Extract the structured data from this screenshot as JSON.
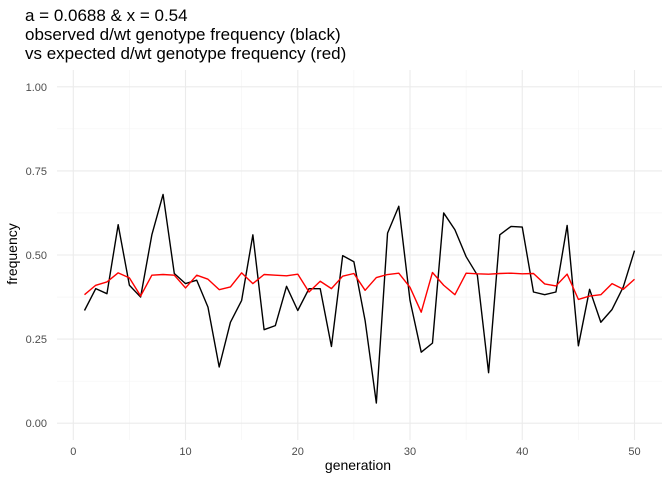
{
  "chart_data": {
    "type": "line",
    "title_lines": [
      "a = 0.0688 & x = 0.54",
      "observed d/wt genotype frequency (black)",
      "vs expected d/wt genotype frequency (red)"
    ],
    "xlabel": "generation",
    "ylabel": "frequency",
    "xlim": [
      -1.45,
      52.45
    ],
    "ylim": [
      -0.05,
      1.05
    ],
    "x_ticks": [
      0,
      10,
      20,
      30,
      40,
      50
    ],
    "x_tick_labels": [
      "0",
      "10",
      "20",
      "30",
      "40",
      "50"
    ],
    "y_ticks": [
      0,
      0.25,
      0.5,
      0.75,
      1.0
    ],
    "y_tick_labels": [
      "0.00",
      "0.25",
      "0.50",
      "0.75",
      "1.00"
    ],
    "grid": true,
    "x": [
      1,
      2,
      3,
      4,
      5,
      6,
      7,
      8,
      9,
      10,
      11,
      12,
      13,
      14,
      15,
      16,
      17,
      18,
      19,
      20,
      21,
      22,
      23,
      24,
      25,
      26,
      27,
      28,
      29,
      30,
      31,
      32,
      33,
      34,
      35,
      36,
      37,
      38,
      39,
      40,
      41,
      42,
      43,
      44,
      45,
      46,
      47,
      48,
      49,
      50
    ],
    "series": [
      {
        "color": "#000000",
        "values": [
          0.335,
          0.4,
          0.385,
          0.59,
          0.41,
          0.375,
          0.56,
          0.68,
          0.445,
          0.415,
          0.425,
          0.345,
          0.167,
          0.3,
          0.365,
          0.56,
          0.278,
          0.29,
          0.407,
          0.335,
          0.4,
          0.4,
          0.228,
          0.498,
          0.48,
          0.305,
          0.06,
          0.565,
          0.645,
          0.365,
          0.211,
          0.238,
          0.625,
          0.575,
          0.495,
          0.44,
          0.15,
          0.56,
          0.585,
          0.583,
          0.39,
          0.382,
          0.39,
          0.588,
          0.23,
          0.398,
          0.3,
          0.338,
          0.405,
          0.513
        ]
      },
      {
        "color": "#ff0000",
        "values": [
          0.382,
          0.41,
          0.42,
          0.447,
          0.432,
          0.378,
          0.44,
          0.442,
          0.44,
          0.402,
          0.44,
          0.428,
          0.397,
          0.405,
          0.447,
          0.415,
          0.442,
          0.44,
          0.438,
          0.443,
          0.39,
          0.422,
          0.4,
          0.437,
          0.445,
          0.395,
          0.433,
          0.442,
          0.446,
          0.404,
          0.33,
          0.448,
          0.41,
          0.382,
          0.446,
          0.444,
          0.443,
          0.445,
          0.446,
          0.444,
          0.445,
          0.414,
          0.408,
          0.443,
          0.368,
          0.378,
          0.382,
          0.415,
          0.398,
          0.428
        ]
      }
    ]
  }
}
